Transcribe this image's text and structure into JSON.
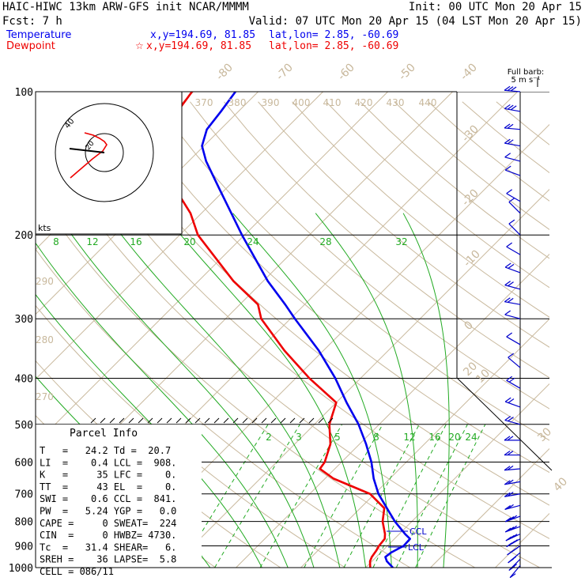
{
  "header": {
    "model": "HAIC-HIWC 13km ARW-GFS init   NCAR/MMMM",
    "init": "Init: 00 UTC Mon 20 Apr 15",
    "fcst": "Fcst:   7 h",
    "valid": "Valid: 07 UTC Mon 20 Apr 15 (04 LST Mon 20 Apr 15)",
    "temp_label": "Temperature",
    "temp_xy": "x,y=194.69, 81.85",
    "temp_latlon": "lat,lon=  2.85, -60.69",
    "dew_label": "Dewpoint",
    "dew_xy": "x,y=194.69, 81.85",
    "dew_latlon": "lat,lon=  2.85, -60.69",
    "star": "☆"
  },
  "colors": {
    "temperature": "#0000ee",
    "dewpoint": "#ee0000",
    "isotherm": "#c8b89c",
    "dry_adiabat": "#c8b89c",
    "moist_adiabat": "#22aa22",
    "mixing_ratio": "#22aa22",
    "wind_barb": "#0000cc",
    "isobar": "#000000"
  },
  "barb_legend": {
    "line1": "Full barb:",
    "line2": "5 m s⁻¹"
  },
  "hodograph": {
    "units": "kts",
    "ring_label": "40",
    "ring_label_inner": "20"
  },
  "parcel": {
    "title": "Parcel Info",
    "rows": [
      "T   =   24.2 Td =  20.7",
      "LI  =    0.4 LCL =  908.",
      "K   =     35 LFC =    0.",
      "TT  =     43 EL  =    0.",
      "SWI =    0.6 CCL =  841.",
      "PW  =   5.24 YGP =   0.0",
      "CAPE =     0 SWEAT=  224",
      "CIN  =     0 HWBZ= 4730.",
      "Tc  =   31.4 SHEAR=   6.",
      "SREH =    36 LAPSE=  5.8",
      "CELL = 086/11"
    ]
  },
  "markers": {
    "ccl": "CCL",
    "lcl": "LCL"
  },
  "chart_data": {
    "type": "line",
    "title": "",
    "xlabel": "",
    "ylabel": "",
    "pressure_ticks": [
      100,
      200,
      300,
      400,
      500,
      600,
      700,
      800,
      900,
      1000
    ],
    "isotherm_ticks": [
      40,
      30,
      20,
      10,
      0,
      -10,
      -20,
      -30,
      -40,
      -50,
      -60,
      -70,
      -80
    ],
    "theta_labels": [
      "270",
      "280",
      "290",
      "370",
      "380",
      "390",
      "400",
      "410",
      "420",
      "430",
      "440"
    ],
    "mixing_ratio_upper": [
      "8",
      "12",
      "16",
      "20",
      "24",
      "28",
      "32"
    ],
    "mixing_ratio_lower": [
      "2",
      "3",
      "5",
      "8",
      "12",
      "16",
      "20",
      "24"
    ],
    "series": [
      {
        "name": "Temperature",
        "points": [
          [
            1000,
            24.2
          ],
          [
            970,
            22.3
          ],
          [
            950,
            21.4
          ],
          [
            930,
            21.6
          ],
          [
            900,
            22.5
          ],
          [
            870,
            22.4
          ],
          [
            850,
            20.9
          ],
          [
            800,
            17.4
          ],
          [
            750,
            14.1
          ],
          [
            700,
            10.6
          ],
          [
            650,
            7.5
          ],
          [
            600,
            4.6
          ],
          [
            550,
            1.0
          ],
          [
            500,
            -3.2
          ],
          [
            450,
            -8.4
          ],
          [
            400,
            -13.9
          ],
          [
            350,
            -20.7
          ],
          [
            300,
            -29.3
          ],
          [
            280,
            -33.0
          ],
          [
            250,
            -39.3
          ],
          [
            200,
            -50.4
          ],
          [
            180,
            -55.4
          ],
          [
            160,
            -61.0
          ],
          [
            140,
            -67.3
          ],
          [
            130,
            -70.3
          ],
          [
            120,
            -72.1
          ],
          [
            110,
            -72.7
          ],
          [
            100,
            -73.5
          ]
        ]
      },
      {
        "name": "Dewpoint",
        "points": [
          [
            1000,
            20.7
          ],
          [
            970,
            19.7
          ],
          [
            950,
            19.3
          ],
          [
            920,
            19.0
          ],
          [
            900,
            18.7
          ],
          [
            870,
            18.5
          ],
          [
            850,
            17.8
          ],
          [
            800,
            15.5
          ],
          [
            750,
            13.7
          ],
          [
            700,
            9.3
          ],
          [
            650,
            1.3
          ],
          [
            620,
            -2.3
          ],
          [
            600,
            -2.6
          ],
          [
            550,
            -4.5
          ],
          [
            500,
            -7.7
          ],
          [
            450,
            -10.0
          ],
          [
            400,
            -17.9
          ],
          [
            350,
            -26.0
          ],
          [
            300,
            -34.5
          ],
          [
            280,
            -37.2
          ],
          [
            250,
            -44.6
          ],
          [
            200,
            -57.2
          ],
          [
            180,
            -61.7
          ],
          [
            160,
            -67.8
          ],
          [
            140,
            -75.2
          ],
          [
            130,
            -77.3
          ],
          [
            120,
            -78.8
          ],
          [
            110,
            -79.4
          ],
          [
            100,
            -80.2
          ]
        ]
      }
    ],
    "hodograph_points": [
      [
        -43,
        -32
      ],
      [
        -15,
        -8
      ],
      [
        -2,
        2
      ],
      [
        3,
        10
      ],
      [
        0,
        14
      ],
      [
        -6,
        18
      ],
      [
        -14,
        22
      ],
      [
        -25,
        25
      ]
    ],
    "wind_barbs": [
      {
        "p": 100,
        "dir": 275,
        "spd": 15
      },
      {
        "p": 110,
        "dir": 280,
        "spd": 15
      },
      {
        "p": 120,
        "dir": 275,
        "spd": 10
      },
      {
        "p": 130,
        "dir": 280,
        "spd": 10
      },
      {
        "p": 140,
        "dir": 285,
        "spd": 5
      },
      {
        "p": 150,
        "dir": 290,
        "spd": 5
      },
      {
        "p": 170,
        "dir": 300,
        "spd": 5
      },
      {
        "p": 180,
        "dir": 315,
        "spd": 5
      },
      {
        "p": 200,
        "dir": 315,
        "spd": 5
      },
      {
        "p": 220,
        "dir": 300,
        "spd": 5
      },
      {
        "p": 240,
        "dir": 290,
        "spd": 10
      },
      {
        "p": 260,
        "dir": 285,
        "spd": 10
      },
      {
        "p": 280,
        "dir": 280,
        "spd": 10
      },
      {
        "p": 300,
        "dir": 285,
        "spd": 5
      },
      {
        "p": 340,
        "dir": 300,
        "spd": 5
      },
      {
        "p": 380,
        "dir": 310,
        "spd": 5
      },
      {
        "p": 420,
        "dir": 300,
        "spd": 10
      },
      {
        "p": 460,
        "dir": 290,
        "spd": 10
      },
      {
        "p": 500,
        "dir": 285,
        "spd": 10
      },
      {
        "p": 540,
        "dir": 270,
        "spd": 10
      },
      {
        "p": 580,
        "dir": 270,
        "spd": 10
      },
      {
        "p": 620,
        "dir": 265,
        "spd": 10
      },
      {
        "p": 660,
        "dir": 260,
        "spd": 10
      },
      {
        "p": 700,
        "dir": 260,
        "spd": 10
      },
      {
        "p": 740,
        "dir": 255,
        "spd": 10
      },
      {
        "p": 780,
        "dir": 250,
        "spd": 15
      },
      {
        "p": 820,
        "dir": 250,
        "spd": 15
      },
      {
        "p": 850,
        "dir": 245,
        "spd": 15
      },
      {
        "p": 870,
        "dir": 240,
        "spd": 15
      },
      {
        "p": 900,
        "dir": 235,
        "spd": 15
      },
      {
        "p": 930,
        "dir": 230,
        "spd": 10
      },
      {
        "p": 960,
        "dir": 225,
        "spd": 10
      },
      {
        "p": 990,
        "dir": 220,
        "spd": 5
      }
    ]
  }
}
